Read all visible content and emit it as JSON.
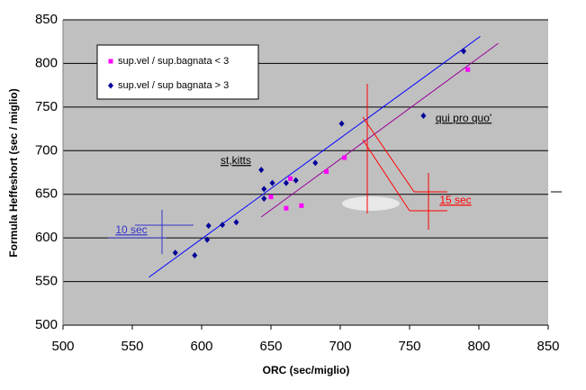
{
  "chart_data": {
    "type": "scatter",
    "x_label": "ORC (sec/miglio)",
    "y_label": "Formula Heffeshort (sec / miglio)",
    "xlim": [
      500,
      850
    ],
    "xticks": [
      500,
      550,
      600,
      650,
      700,
      750,
      800,
      850
    ],
    "ylim": [
      500,
      850
    ],
    "yticks": [
      500,
      550,
      600,
      650,
      700,
      750,
      800,
      850
    ],
    "grid": true,
    "background": "#c0c0c0",
    "series": [
      {
        "name": "sup.vel / sup.bagnata < 3",
        "color": "#ff00ff",
        "marker": "square",
        "x": [
          650,
          661,
          664,
          672,
          690,
          703,
          792
        ],
        "values": [
          647,
          634,
          668,
          637,
          676,
          692,
          793
        ]
      },
      {
        "name": "sup.vel / sup bagnata > 3",
        "color": "#000099",
        "marker": "diamond",
        "x": [
          581,
          595,
          604,
          605,
          615,
          625,
          643,
          645,
          645,
          651,
          661,
          668,
          682,
          701,
          760,
          789
        ],
        "values": [
          583,
          580,
          598,
          614,
          615,
          618,
          678,
          645,
          656,
          663,
          663,
          666,
          686,
          731,
          740,
          814
        ]
      }
    ],
    "trendlines": [
      {
        "color": "#0000ff",
        "x": [
          562,
          801
        ],
        "values": [
          555,
          831
        ]
      },
      {
        "color": "#990099",
        "x": [
          643,
          814
        ],
        "values": [
          624,
          823
        ]
      }
    ],
    "annotations": [
      "st,kitts",
      "qui pro quo'",
      "10 sec",
      "15 sec"
    ]
  }
}
